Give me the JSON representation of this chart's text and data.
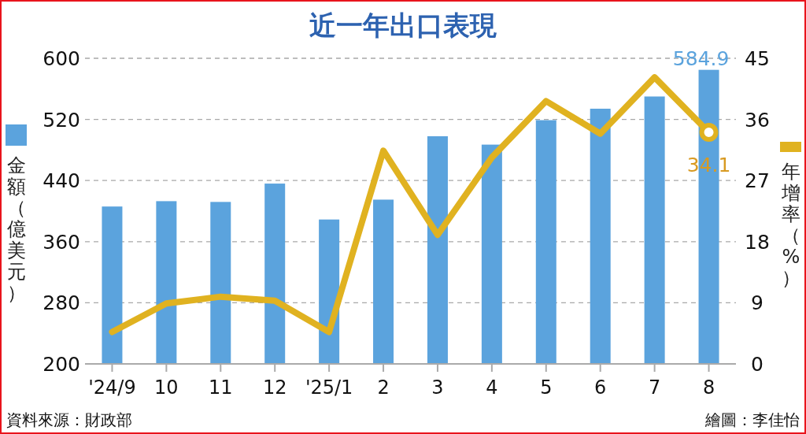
{
  "chart_data": {
    "type": "bar",
    "title": "近一年出口表現",
    "ylabel": "金額（億美元）",
    "y2label": "年增率（%）",
    "annotations": [
      "資料來源：財政部",
      "繪圖：李佳怡"
    ],
    "categories": [
      "'24/9",
      "10",
      "11",
      "12",
      "'25/1",
      "2",
      "3",
      "4",
      "5",
      "6",
      "7",
      "8"
    ],
    "series": [
      {
        "color": "#5ba3dd",
        "values": [
          406,
          413,
          412,
          436,
          389,
          415,
          498,
          487,
          519,
          534,
          550,
          584.9
        ],
        "value_labels": [
          null,
          null,
          null,
          null,
          null,
          null,
          null,
          null,
          null,
          null,
          null,
          "584.9"
        ]
      },
      {
        "type": "line",
        "axis": "y2",
        "color": "#e0b220",
        "values": [
          4.7,
          8.9,
          9.9,
          9.3,
          4.7,
          31.4,
          19.0,
          30.4,
          38.7,
          33.9,
          42.2,
          34.1
        ],
        "value_labels": [
          null,
          null,
          null,
          null,
          null,
          null,
          null,
          null,
          null,
          null,
          null,
          "34.1"
        ]
      }
    ],
    "ylim": [
      200,
      600
    ],
    "yticks": [
      200,
      280,
      360,
      440,
      520,
      600
    ],
    "y2lim": [
      0,
      45
    ],
    "y2ticks": [
      0,
      9,
      18,
      27,
      36,
      45
    ],
    "grid": "y",
    "line_style": "solid"
  }
}
